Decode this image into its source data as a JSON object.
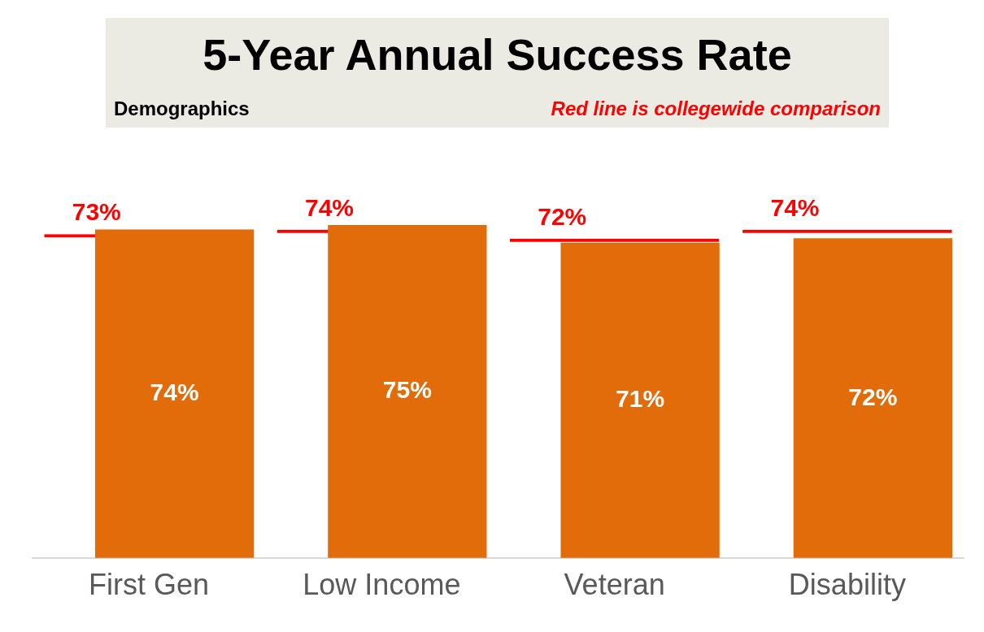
{
  "chart_data": {
    "type": "bar",
    "title": "5-Year Annual Success Rate",
    "subtitle": "Demographics",
    "annotations": [
      "Red line is collegewide comparison"
    ],
    "categories": [
      "First Gen",
      "Low Income",
      "Veteran",
      "Disability"
    ],
    "series": [
      {
        "values": [
          73,
          74,
          72,
          74
        ],
        "color": "#ff0000",
        "value_labels": [
          "73%",
          "74%",
          "72%",
          "74%"
        ]
      },
      {
        "values": [
          74,
          75,
          71,
          72
        ],
        "color": "#e36c0a",
        "value_labels": [
          "74%",
          "75%",
          "71%",
          "72%"
        ]
      }
    ],
    "data_labels": true,
    "grid": false,
    "legend": false,
    "tick_labels": "x"
  }
}
